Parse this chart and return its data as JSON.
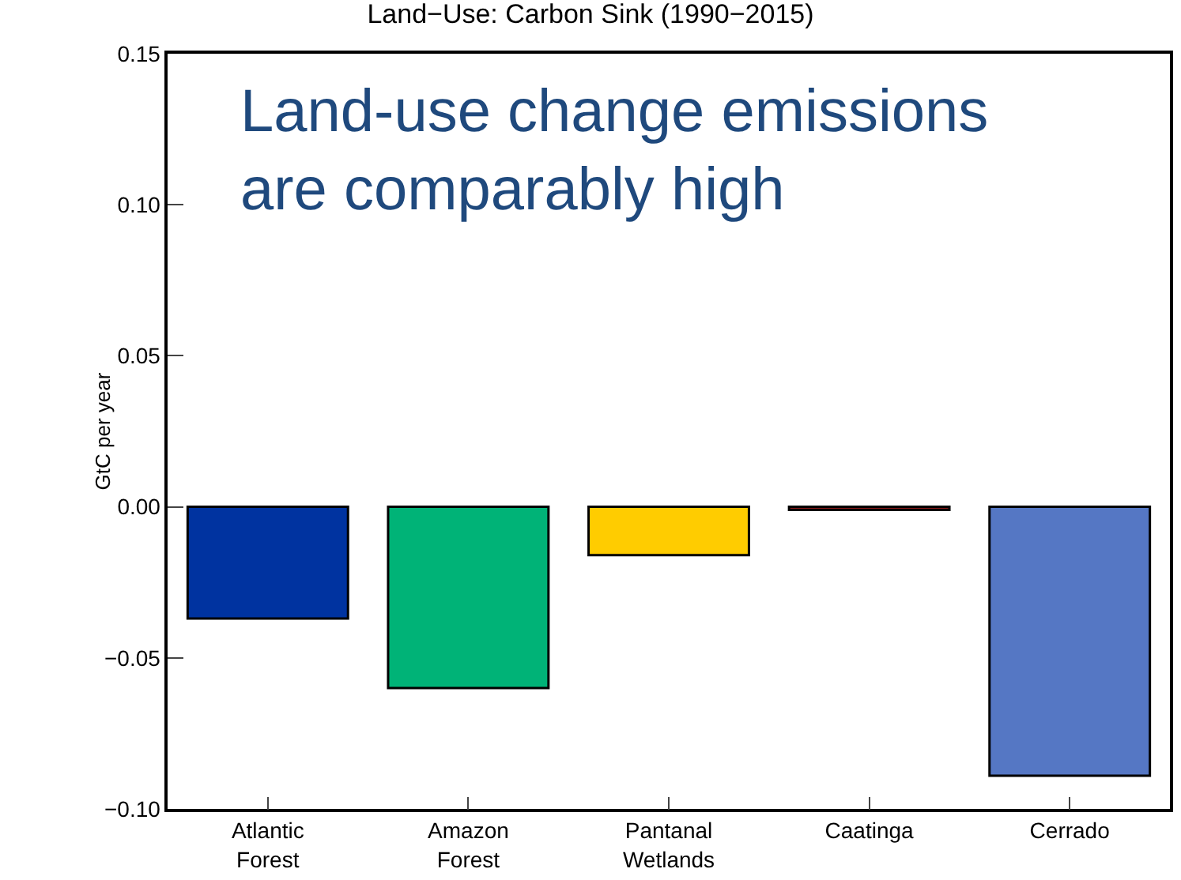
{
  "chart_data": {
    "type": "bar",
    "title": "Land−Use: Carbon Sink (1990−2015)",
    "ylabel": "GtC per year",
    "categories": [
      "Atlantic Forest",
      "Amazon Forest",
      "Pantanal Wetlands",
      "Caatinga",
      "Cerrado"
    ],
    "values": [
      -0.037,
      -0.06,
      -0.016,
      -0.001,
      -0.089
    ],
    "colors": [
      "#0033a0",
      "#00b377",
      "#ffcc00",
      "#8b1a1a",
      "#5577c4"
    ],
    "ylim": [
      -0.1,
      0.15
    ],
    "yticks": [
      {
        "value": -0.1,
        "label": "−0.10"
      },
      {
        "value": -0.05,
        "label": "−0.05"
      },
      {
        "value": 0,
        "label": "0.00"
      },
      {
        "value": 0.05,
        "label": "0.05"
      },
      {
        "value": 0.1,
        "label": "0.10"
      },
      {
        "value": 0.15,
        "label": "0.15"
      }
    ],
    "grid": false,
    "annotations": [
      "Land-use change emissions are comparably high"
    ]
  }
}
